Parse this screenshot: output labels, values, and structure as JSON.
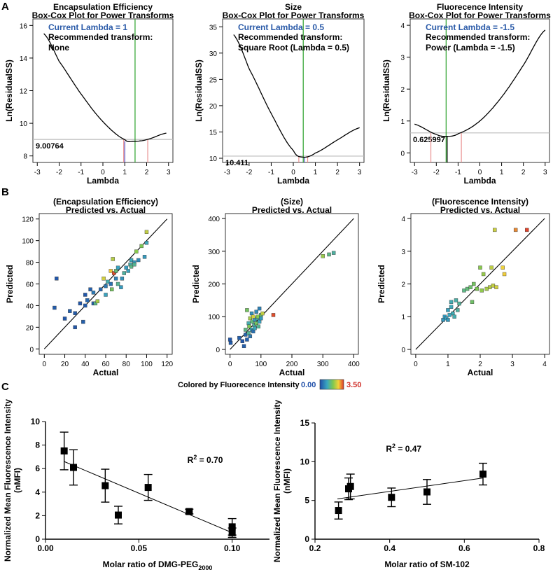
{
  "panel_labels": {
    "A": "A",
    "B": "B",
    "C": "C"
  },
  "colorbar": {
    "label": "Colored by Fluorecence Intensity",
    "min_label": "0.00",
    "max_label": "3.50",
    "colors": [
      "#1f4fa8",
      "#3aa7c0",
      "#7ec850",
      "#f2d23a",
      "#e03a2a"
    ]
  },
  "chart_data": [
    {
      "id": "boxcox_ee",
      "type": "line",
      "title": "Encapsulation Efficiency",
      "subtitle": "Box-Cox Plot for Power Transforms",
      "xlabel": "Lambda",
      "ylabel": "Ln(ResidualSS)",
      "xlim": [
        -3.2,
        3.2
      ],
      "ylim": [
        7.6,
        16.4
      ],
      "xticks": [
        -3,
        -2,
        -1,
        0,
        1,
        2,
        3
      ],
      "yticks": [
        8,
        10,
        12,
        14,
        16
      ],
      "curve": {
        "min_x": 1.4,
        "min_y": 8.9,
        "x": [
          -2.7,
          -2.0,
          -1.0,
          0.0,
          1.0,
          1.4,
          2.0,
          2.9
        ],
        "y": [
          15.5,
          13.8,
          11.8,
          10.1,
          9.0,
          8.9,
          9.0,
          9.4
        ]
      },
      "current_lambda": "Current Lambda = 1",
      "current_x": 1.0,
      "best_x": 1.47,
      "ci": [
        0.95,
        2.05
      ],
      "recommended_label": "Recommended transform:",
      "recommended_value": "None",
      "threshold_label": "9.00764",
      "threshold_y": 9.01
    },
    {
      "id": "boxcox_size",
      "type": "line",
      "title": "Size",
      "subtitle": "Box-Cox Plot for Power Transforms",
      "xlabel": "Lambda",
      "ylabel": "Ln(ResidualSS)",
      "xlim": [
        -3.2,
        3.2
      ],
      "ylim": [
        9.2,
        36.5
      ],
      "xticks": [
        -3,
        -2,
        -1,
        0,
        1,
        2,
        3
      ],
      "yticks": [
        10,
        15,
        20,
        25,
        30,
        35
      ],
      "curve": {
        "min_x": 0.45,
        "min_y": 10.2,
        "x": [
          -2.7,
          -2.0,
          -1.0,
          0.0,
          0.45,
          1.0,
          2.0,
          3.0
        ],
        "y": [
          33.5,
          27.0,
          18.5,
          11.5,
          10.2,
          11.0,
          13.5,
          15.8
        ]
      },
      "current_lambda": "Current Lambda = 0.5",
      "current_x": 0.5,
      "best_x": 0.45,
      "ci": [
        0.25,
        0.65
      ],
      "recommended_label": "Recommended transform:",
      "recommended_value": "Square Root  (Lambda = 0.5)",
      "threshold_label": "10.411",
      "threshold_y": 10.41
    },
    {
      "id": "boxcox_fi",
      "type": "line",
      "title": "Fluorecence Intensity",
      "subtitle": "Box-Cox Plot for Power Transforms",
      "xlabel": "Lambda",
      "ylabel": "Ln(ResidualSS)",
      "xlim": [
        -3.2,
        3.2
      ],
      "ylim": [
        -0.3,
        4.2
      ],
      "xticks": [
        -3,
        -2,
        -1,
        0,
        1,
        2,
        3
      ],
      "yticks": [
        0,
        1,
        2,
        3,
        4
      ],
      "curve": {
        "min_x": -1.5,
        "min_y": 0.52,
        "x": [
          -3.0,
          -2.0,
          -1.5,
          -1.0,
          0.0,
          1.0,
          2.0,
          3.0
        ],
        "y": [
          0.9,
          0.58,
          0.52,
          0.6,
          1.0,
          1.75,
          2.75,
          3.85
        ]
      },
      "current_lambda": "Current Lambda = -1.5",
      "current_x": -1.5,
      "best_x": -1.55,
      "ci": [
        -2.25,
        -0.85
      ],
      "recommended_label": "Recommended transform:",
      "recommended_value": "Power    (Lambda = -1.5)",
      "threshold_label": "0.625997",
      "threshold_y": 0.626
    },
    {
      "id": "pva_ee",
      "type": "scatter",
      "title": "(Encapsulation Efficiency)",
      "subtitle": "Predicted vs. Actual",
      "xlabel": "Actual",
      "ylabel": "Predicted",
      "xlim": [
        -5,
        125
      ],
      "ylim": [
        -5,
        125
      ],
      "xticks": [
        0,
        20,
        40,
        60,
        80,
        100,
        120
      ],
      "yticks": [
        0,
        20,
        40,
        60,
        80,
        100,
        120
      ],
      "diag": [
        0,
        120
      ],
      "points": [
        [
          12,
          65,
          0.1
        ],
        [
          10,
          38,
          0.15
        ],
        [
          20,
          28,
          0.1
        ],
        [
          25,
          35,
          0.2
        ],
        [
          30,
          20,
          0.1
        ],
        [
          30,
          33,
          0.15
        ],
        [
          35,
          42,
          0.1
        ],
        [
          38,
          25,
          0.2
        ],
        [
          40,
          40,
          0.15
        ],
        [
          40,
          50,
          0.1
        ],
        [
          42,
          45,
          0.3
        ],
        [
          45,
          55,
          0.2
        ],
        [
          48,
          42,
          0.25
        ],
        [
          48,
          52,
          0.5
        ],
        [
          50,
          42,
          1.5
        ],
        [
          52,
          44,
          2.2
        ],
        [
          55,
          55,
          0.3
        ],
        [
          58,
          65,
          2.5
        ],
        [
          60,
          50,
          1.0
        ],
        [
          60,
          58,
          0.5
        ],
        [
          62,
          62,
          1.2
        ],
        [
          65,
          60,
          0.4
        ],
        [
          65,
          72,
          2.8
        ],
        [
          66,
          55,
          1.8
        ],
        [
          67,
          83,
          2.3
        ],
        [
          68,
          70,
          3.4
        ],
        [
          70,
          72,
          1.6
        ],
        [
          70,
          65,
          0.6
        ],
        [
          72,
          60,
          1.4
        ],
        [
          72,
          75,
          1.0
        ],
        [
          75,
          57,
          0.9
        ],
        [
          76,
          65,
          0.8
        ],
        [
          78,
          70,
          1.3
        ],
        [
          80,
          75,
          0.9
        ],
        [
          82,
          72,
          1.0
        ],
        [
          84,
          78,
          1.2
        ],
        [
          85,
          76,
          1.5
        ],
        [
          85,
          82,
          1.1
        ],
        [
          88,
          80,
          0.8
        ],
        [
          88,
          78,
          1.4
        ],
        [
          90,
          90,
          2.0
        ],
        [
          92,
          82,
          0.7
        ],
        [
          95,
          95,
          1.9
        ],
        [
          98,
          85,
          0.9
        ],
        [
          100,
          108,
          2.4
        ],
        [
          100,
          98,
          1.1
        ]
      ]
    },
    {
      "id": "pva_size",
      "type": "scatter",
      "title": "(Size)",
      "subtitle": "Predicted vs. Actual",
      "xlabel": "Actual",
      "ylabel": "Predicted",
      "xlim": [
        -15,
        415
      ],
      "ylim": [
        -15,
        415
      ],
      "xticks": [
        0,
        100,
        200,
        300,
        400
      ],
      "yticks": [
        0,
        100,
        200,
        300,
        400
      ],
      "diag": [
        0,
        400
      ],
      "points": [
        [
          0,
          30,
          0.1
        ],
        [
          2,
          20,
          0.15
        ],
        [
          30,
          35,
          0.2
        ],
        [
          40,
          25,
          0.1
        ],
        [
          45,
          10,
          0.2
        ],
        [
          50,
          60,
          1.5
        ],
        [
          50,
          45,
          0.3
        ],
        [
          55,
          120,
          1.8
        ],
        [
          55,
          30,
          0.2
        ],
        [
          60,
          80,
          1.2
        ],
        [
          60,
          50,
          1.4
        ],
        [
          62,
          70,
          1.9
        ],
        [
          65,
          40,
          0.5
        ],
        [
          65,
          95,
          2.2
        ],
        [
          70,
          60,
          1.0
        ],
        [
          70,
          110,
          0.8
        ],
        [
          72,
          85,
          1.6
        ],
        [
          75,
          55,
          0.4
        ],
        [
          75,
          100,
          2.5
        ],
        [
          78,
          75,
          1.3
        ],
        [
          80,
          90,
          0.9
        ],
        [
          80,
          65,
          1.1
        ],
        [
          85,
          115,
          0.7
        ],
        [
          85,
          80,
          1.8
        ],
        [
          88,
          95,
          1.2
        ],
        [
          90,
          100,
          2.0
        ],
        [
          92,
          70,
          1.4
        ],
        [
          95,
          125,
          0.6
        ],
        [
          95,
          85,
          1.0
        ],
        [
          100,
          105,
          1.7
        ],
        [
          100,
          95,
          0.9
        ],
        [
          105,
          110,
          2.4
        ],
        [
          140,
          105,
          3.4
        ],
        [
          300,
          285,
          2.1
        ],
        [
          320,
          290,
          1.5
        ],
        [
          335,
          295,
          1.3
        ]
      ]
    },
    {
      "id": "pva_fi",
      "type": "scatter",
      "title": "(Fluorescence Intensity)",
      "subtitle": "Predicted vs. Actual",
      "xlabel": "Actual",
      "ylabel": "Predicted",
      "xlim": [
        -0.15,
        4.15
      ],
      "ylim": [
        -0.15,
        4.15
      ],
      "xticks": [
        0,
        1,
        2,
        3,
        4
      ],
      "yticks": [
        0,
        1,
        2,
        3,
        4
      ],
      "diag": [
        0,
        4
      ],
      "points": [
        [
          0.85,
          0.9,
          0.85
        ],
        [
          0.9,
          1.0,
          0.9
        ],
        [
          0.95,
          0.95,
          0.95
        ],
        [
          1.0,
          1.2,
          1.0
        ],
        [
          1.0,
          0.9,
          0.9
        ],
        [
          1.05,
          1.05,
          1.05
        ],
        [
          1.1,
          1.3,
          1.1
        ],
        [
          1.1,
          1.45,
          1.15
        ],
        [
          1.15,
          1.1,
          1.15
        ],
        [
          1.2,
          1.0,
          1.2
        ],
        [
          1.25,
          1.5,
          1.25
        ],
        [
          1.3,
          1.2,
          1.3
        ],
        [
          1.35,
          1.4,
          1.35
        ],
        [
          1.5,
          1.8,
          1.5
        ],
        [
          1.6,
          1.85,
          1.6
        ],
        [
          1.7,
          1.9,
          1.7
        ],
        [
          1.75,
          1.45,
          1.75
        ],
        [
          1.8,
          2.0,
          1.8
        ],
        [
          1.9,
          1.85,
          1.9
        ],
        [
          2.0,
          2.5,
          2.0
        ],
        [
          2.05,
          1.8,
          2.05
        ],
        [
          2.1,
          2.3,
          2.1
        ],
        [
          2.2,
          1.85,
          2.2
        ],
        [
          2.3,
          1.9,
          2.3
        ],
        [
          2.35,
          2.5,
          2.35
        ],
        [
          2.4,
          1.95,
          2.4
        ],
        [
          2.45,
          3.65,
          2.45
        ],
        [
          2.5,
          1.9,
          2.5
        ],
        [
          2.7,
          2.5,
          2.7
        ],
        [
          2.75,
          2.3,
          2.75
        ],
        [
          3.1,
          3.65,
          3.1
        ],
        [
          3.45,
          3.65,
          3.45
        ]
      ]
    },
    {
      "id": "peg",
      "type": "scatter",
      "title": "",
      "xlabel": "Molar ratio of DMG-PEG",
      "xlabel_sub": "2000",
      "ylabel_lines": [
        "Normalized Mean Fluorescence Intensity",
        "(nMFI)"
      ],
      "xlim": [
        0,
        0.12
      ],
      "ylim": [
        0,
        10
      ],
      "xticks": [
        0.0,
        0.05,
        0.1
      ],
      "xtick_labels": [
        "0.00",
        "0.05",
        "0.10"
      ],
      "yticks": [
        0,
        2,
        4,
        6,
        8,
        10
      ],
      "r2_label": "R",
      "r2_value": " = 0.70",
      "r2_pos": [
        0.076,
        6.5
      ],
      "fit": {
        "x": [
          0.01,
          0.1
        ],
        "y": [
          6.6,
          0.55
        ]
      },
      "points": [
        [
          0.01,
          7.5,
          1.6
        ],
        [
          0.015,
          6.1,
          1.5
        ],
        [
          0.032,
          4.55,
          1.4
        ],
        [
          0.039,
          2.05,
          0.75
        ],
        [
          0.055,
          4.4,
          1.1
        ],
        [
          0.077,
          2.35,
          0.2
        ],
        [
          0.1,
          1.05,
          0.7
        ],
        [
          0.1,
          0.55,
          0.4
        ]
      ]
    },
    {
      "id": "sm102",
      "type": "scatter",
      "title": "",
      "xlabel": "Molar ratio of SM-102",
      "ylabel_lines": [
        "Normalized Mean Fluorescence Intensity",
        "(nMFI)"
      ],
      "xlim": [
        0.2,
        0.8
      ],
      "ylim": [
        0,
        15
      ],
      "xticks": [
        0.2,
        0.4,
        0.6,
        0.8
      ],
      "xtick_labels": [
        "0.2",
        "0.4",
        "0.6",
        "0.8"
      ],
      "yticks": [
        0,
        5,
        10,
        15
      ],
      "r2_label": "R",
      "r2_value": " = 0.47",
      "r2_pos": [
        0.39,
        11.3
      ],
      "fit": {
        "x": [
          0.26,
          0.65
        ],
        "y": [
          5.2,
          7.9
        ]
      },
      "points": [
        [
          0.263,
          3.7,
          1.1
        ],
        [
          0.29,
          6.5,
          1.4
        ],
        [
          0.295,
          6.8,
          1.6
        ],
        [
          0.405,
          5.4,
          1.2
        ],
        [
          0.5,
          6.1,
          1.6
        ],
        [
          0.65,
          8.4,
          1.4
        ]
      ]
    }
  ]
}
